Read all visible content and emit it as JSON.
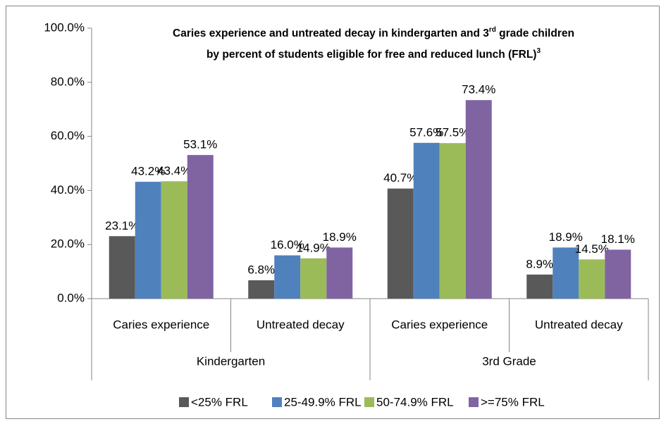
{
  "chart_data": {
    "type": "bar",
    "title": [
      [
        {
          "text": "Caries experience and untreated decay in kindergarten and 3"
        },
        {
          "text": "rd",
          "sup": true
        },
        {
          "text": " grade children"
        }
      ],
      [
        {
          "text": "by percent of students eligible for free and reduced lunch (FRL)"
        },
        {
          "text": "3",
          "sup": true
        }
      ]
    ],
    "categories": [
      "Caries experience",
      "Untreated decay",
      "Caries experience",
      "Untreated decay"
    ],
    "category_groups": [
      "Kindergarten",
      "3rd Grade"
    ],
    "series": [
      {
        "name": "<25% FRL",
        "color": "#595959",
        "values": [
          23.1,
          6.8,
          40.7,
          8.9
        ],
        "value_labels": [
          "23.1%",
          "6.8%",
          "40.7%",
          "8.9%"
        ]
      },
      {
        "name": "25-49.9% FRL",
        "color": "#4f81bd",
        "values": [
          43.2,
          16.0,
          57.6,
          18.9
        ],
        "value_labels": [
          "43.2%",
          "16.0%",
          "57.6%",
          "18.9%"
        ]
      },
      {
        "name": "50-74.9% FRL",
        "color": "#9bbb59",
        "values": [
          43.4,
          14.9,
          57.5,
          14.5
        ],
        "value_labels": [
          "43.4%",
          "14.9%",
          "57.5%",
          "14.5%"
        ]
      },
      {
        "name": ">=75% FRL",
        "color": "#8064a2",
        "values": [
          53.1,
          18.9,
          73.4,
          18.1
        ],
        "value_labels": [
          "53.1%",
          "18.9%",
          "73.4%",
          "18.1%"
        ]
      }
    ],
    "ylim": [
      0,
      100
    ],
    "yticks": [
      {
        "value": 0,
        "label": "0.0%"
      },
      {
        "value": 20,
        "label": "20.0%"
      },
      {
        "value": 40,
        "label": "40.0%"
      },
      {
        "value": 60,
        "label": "60.0%"
      },
      {
        "value": 80,
        "label": "80.0%"
      },
      {
        "value": 100,
        "label": "100.0%"
      }
    ],
    "legend": "bottom"
  }
}
